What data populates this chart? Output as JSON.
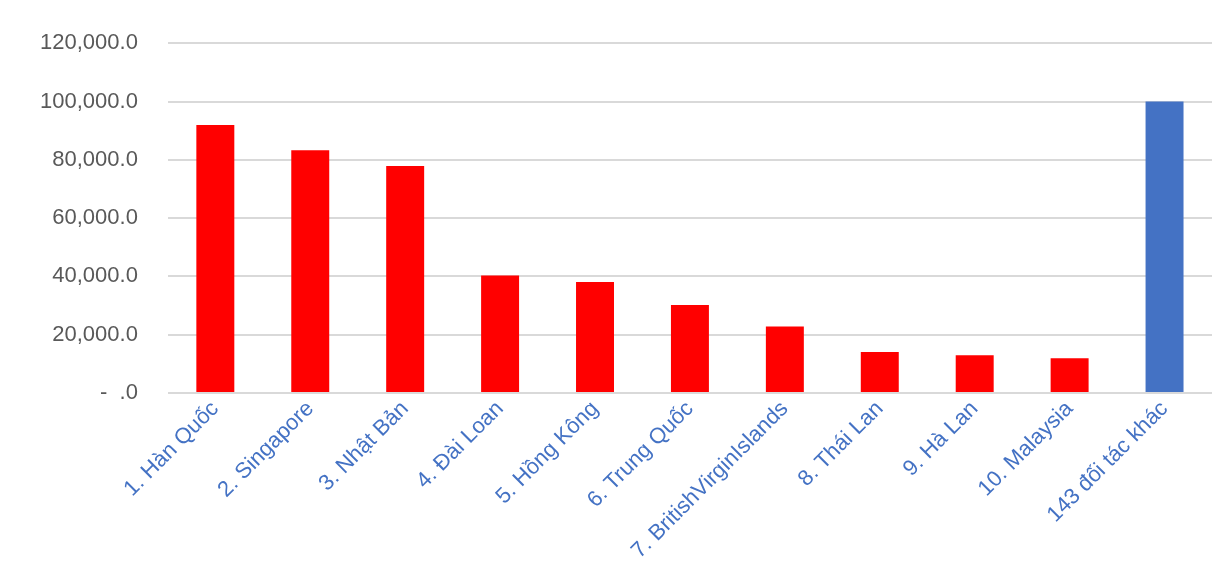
{
  "chart_data": {
    "type": "bar",
    "categories": [
      "1. Hàn Quốc",
      "2. Singapore",
      "3. Nhật Bản",
      "4. Đài Loan",
      "5. Hồng Kông",
      "6. Trung Quốc",
      "7. BritishVirginIslands",
      "8. Thái Lan",
      "9. Hà Lan",
      "10. Malaysia",
      "143 đối tác khác"
    ],
    "values": [
      91900,
      83300,
      77900,
      40300,
      38100,
      30200,
      22800,
      14100,
      13000,
      11900,
      100000
    ],
    "colors": [
      "#ff0000",
      "#ff0000",
      "#ff0000",
      "#ff0000",
      "#ff0000",
      "#ff0000",
      "#ff0000",
      "#ff0000",
      "#ff0000",
      "#ff0000",
      "#4472c4"
    ],
    "ylim": [
      0,
      120000
    ],
    "yticks": [
      {
        "value": 0,
        "label": "-  .0"
      },
      {
        "value": 20000,
        "label": "20,000.0"
      },
      {
        "value": 40000,
        "label": "40,000.0"
      },
      {
        "value": 60000,
        "label": "60,000.0"
      },
      {
        "value": 80000,
        "label": "80,000.0"
      },
      {
        "value": 100000,
        "label": "100,000.0"
      },
      {
        "value": 120000,
        "label": "120,000.0"
      }
    ],
    "grid": "y"
  }
}
